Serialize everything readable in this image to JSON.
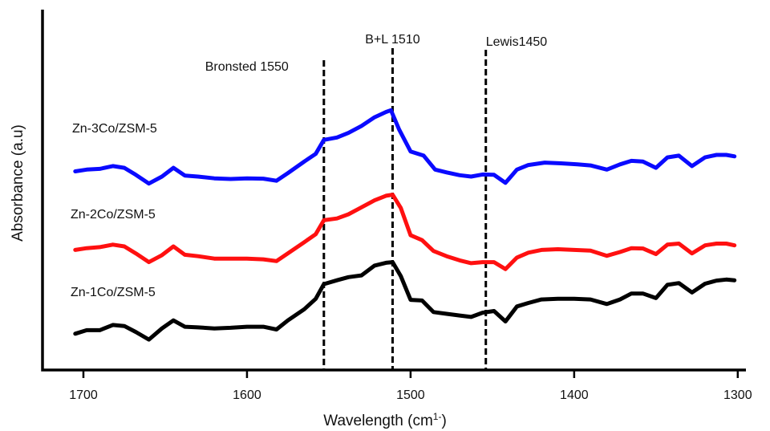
{
  "chart_data": {
    "type": "line",
    "xlabel": "Wavelength (cm",
    "xlabel_sup": "1-",
    "xlabel_close": ")",
    "ylabel": "Absorbance (a.u)",
    "xlim": [
      1725,
      1295
    ],
    "x_reversed": true,
    "ylim": [
      0,
      10
    ],
    "y_ticks_shown": false,
    "grid": false,
    "x_ticks": [
      {
        "value": 1700,
        "label": "1700"
      },
      {
        "value": 1600,
        "label": "1600"
      },
      {
        "value": 1500,
        "label": "1500"
      },
      {
        "value": 1400,
        "label": "1400"
      },
      {
        "value": 1300,
        "label": "1300"
      }
    ],
    "annotations": [
      {
        "x": 1553,
        "label": "Bronsted 1550",
        "label_pos": "left"
      },
      {
        "x": 1511,
        "label": "B+L 1510",
        "label_pos": "center"
      },
      {
        "x": 1454,
        "label": "Lewis1450",
        "label_pos": "right"
      }
    ],
    "series": [
      {
        "name": "Zn-3Co/ZSM-5",
        "color": "#0a0aff",
        "points": [
          [
            1705,
            6.15
          ],
          [
            1698,
            6.2
          ],
          [
            1690,
            6.22
          ],
          [
            1682,
            6.3
          ],
          [
            1675,
            6.25
          ],
          [
            1668,
            6.05
          ],
          [
            1660,
            5.8
          ],
          [
            1652,
            6.0
          ],
          [
            1645,
            6.25
          ],
          [
            1638,
            6.03
          ],
          [
            1630,
            6.0
          ],
          [
            1620,
            5.95
          ],
          [
            1610,
            5.93
          ],
          [
            1600,
            5.95
          ],
          [
            1590,
            5.94
          ],
          [
            1582,
            5.88
          ],
          [
            1575,
            6.1
          ],
          [
            1565,
            6.43
          ],
          [
            1558,
            6.65
          ],
          [
            1553,
            7.05
          ],
          [
            1545,
            7.12
          ],
          [
            1538,
            7.25
          ],
          [
            1530,
            7.45
          ],
          [
            1522,
            7.7
          ],
          [
            1515,
            7.85
          ],
          [
            1512,
            7.9
          ],
          [
            1507,
            7.35
          ],
          [
            1500,
            6.72
          ],
          [
            1492,
            6.6
          ],
          [
            1485,
            6.2
          ],
          [
            1478,
            6.12
          ],
          [
            1470,
            6.04
          ],
          [
            1463,
            6.0
          ],
          [
            1456,
            6.06
          ],
          [
            1449,
            6.05
          ],
          [
            1442,
            5.82
          ],
          [
            1435,
            6.2
          ],
          [
            1428,
            6.33
          ],
          [
            1418,
            6.4
          ],
          [
            1408,
            6.38
          ],
          [
            1398,
            6.35
          ],
          [
            1390,
            6.32
          ],
          [
            1380,
            6.2
          ],
          [
            1372,
            6.35
          ],
          [
            1365,
            6.45
          ],
          [
            1358,
            6.43
          ],
          [
            1350,
            6.25
          ],
          [
            1343,
            6.55
          ],
          [
            1336,
            6.6
          ],
          [
            1328,
            6.3
          ],
          [
            1320,
            6.55
          ],
          [
            1313,
            6.62
          ],
          [
            1307,
            6.62
          ],
          [
            1302,
            6.58
          ]
        ]
      },
      {
        "name": "Zn-2Co/ZSM-5",
        "color": "#ff1010",
        "points": [
          [
            1705,
            3.9
          ],
          [
            1698,
            3.95
          ],
          [
            1690,
            3.98
          ],
          [
            1682,
            4.05
          ],
          [
            1675,
            4.0
          ],
          [
            1668,
            3.8
          ],
          [
            1660,
            3.55
          ],
          [
            1652,
            3.75
          ],
          [
            1645,
            4.0
          ],
          [
            1638,
            3.76
          ],
          [
            1630,
            3.72
          ],
          [
            1620,
            3.65
          ],
          [
            1610,
            3.65
          ],
          [
            1600,
            3.65
          ],
          [
            1590,
            3.63
          ],
          [
            1582,
            3.58
          ],
          [
            1575,
            3.8
          ],
          [
            1565,
            4.12
          ],
          [
            1558,
            4.35
          ],
          [
            1553,
            4.75
          ],
          [
            1545,
            4.8
          ],
          [
            1538,
            4.92
          ],
          [
            1530,
            5.12
          ],
          [
            1522,
            5.32
          ],
          [
            1515,
            5.45
          ],
          [
            1511,
            5.48
          ],
          [
            1506,
            5.1
          ],
          [
            1500,
            4.32
          ],
          [
            1493,
            4.18
          ],
          [
            1486,
            3.87
          ],
          [
            1478,
            3.72
          ],
          [
            1470,
            3.6
          ],
          [
            1463,
            3.52
          ],
          [
            1456,
            3.55
          ],
          [
            1449,
            3.55
          ],
          [
            1442,
            3.35
          ],
          [
            1435,
            3.68
          ],
          [
            1428,
            3.82
          ],
          [
            1420,
            3.9
          ],
          [
            1410,
            3.92
          ],
          [
            1400,
            3.9
          ],
          [
            1390,
            3.88
          ],
          [
            1380,
            3.73
          ],
          [
            1372,
            3.84
          ],
          [
            1365,
            3.95
          ],
          [
            1358,
            3.94
          ],
          [
            1350,
            3.78
          ],
          [
            1343,
            4.05
          ],
          [
            1336,
            4.08
          ],
          [
            1328,
            3.8
          ],
          [
            1320,
            4.03
          ],
          [
            1313,
            4.08
          ],
          [
            1307,
            4.08
          ],
          [
            1302,
            4.03
          ]
        ]
      },
      {
        "name": "Zn-1Co/ZSM-5",
        "color": "#000000",
        "points": [
          [
            1705,
            1.5
          ],
          [
            1698,
            1.6
          ],
          [
            1690,
            1.6
          ],
          [
            1682,
            1.75
          ],
          [
            1675,
            1.72
          ],
          [
            1668,
            1.55
          ],
          [
            1660,
            1.33
          ],
          [
            1652,
            1.65
          ],
          [
            1645,
            1.88
          ],
          [
            1638,
            1.7
          ],
          [
            1630,
            1.68
          ],
          [
            1620,
            1.65
          ],
          [
            1610,
            1.67
          ],
          [
            1600,
            1.7
          ],
          [
            1590,
            1.7
          ],
          [
            1582,
            1.62
          ],
          [
            1575,
            1.88
          ],
          [
            1565,
            2.2
          ],
          [
            1558,
            2.5
          ],
          [
            1553,
            2.92
          ],
          [
            1545,
            3.03
          ],
          [
            1538,
            3.12
          ],
          [
            1530,
            3.17
          ],
          [
            1522,
            3.45
          ],
          [
            1515,
            3.53
          ],
          [
            1511,
            3.55
          ],
          [
            1506,
            3.15
          ],
          [
            1500,
            2.47
          ],
          [
            1493,
            2.45
          ],
          [
            1486,
            2.12
          ],
          [
            1478,
            2.07
          ],
          [
            1470,
            2.02
          ],
          [
            1463,
            1.98
          ],
          [
            1456,
            2.1
          ],
          [
            1449,
            2.15
          ],
          [
            1442,
            1.85
          ],
          [
            1435,
            2.28
          ],
          [
            1428,
            2.38
          ],
          [
            1420,
            2.48
          ],
          [
            1410,
            2.5
          ],
          [
            1400,
            2.5
          ],
          [
            1390,
            2.48
          ],
          [
            1380,
            2.35
          ],
          [
            1372,
            2.48
          ],
          [
            1365,
            2.65
          ],
          [
            1358,
            2.65
          ],
          [
            1350,
            2.52
          ],
          [
            1343,
            2.9
          ],
          [
            1336,
            2.95
          ],
          [
            1328,
            2.68
          ],
          [
            1320,
            2.93
          ],
          [
            1313,
            3.02
          ],
          [
            1307,
            3.05
          ],
          [
            1302,
            3.03
          ]
        ]
      }
    ]
  }
}
